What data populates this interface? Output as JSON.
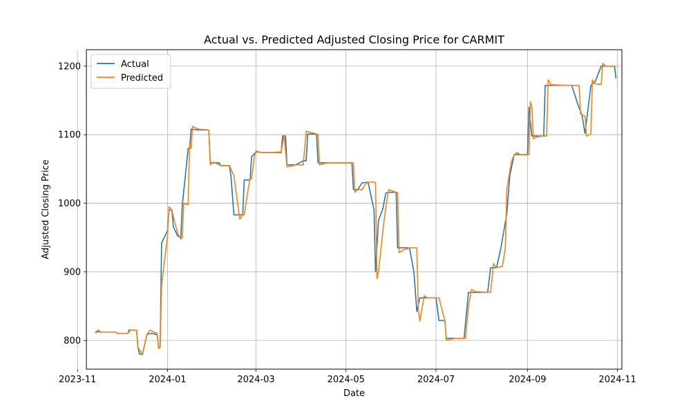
{
  "chart_data": {
    "type": "line",
    "title": "Actual vs. Predicted Adjusted Closing Price for CARMIT",
    "xlabel": "Date",
    "ylabel": "Adjusted Closing Price",
    "x_ticks": [
      "2023-11",
      "2024-01",
      "2024-03",
      "2024-05",
      "2024-07",
      "2024-09",
      "2024-11"
    ],
    "y_ticks": [
      800,
      900,
      1000,
      1100,
      1200
    ],
    "xlim": [
      "2023-11-07",
      "2024-11-04"
    ],
    "ylim": [
      758,
      1224
    ],
    "grid": true,
    "legend_position": "top-left",
    "series": [
      {
        "name": "Actual",
        "color": "#1f77b4",
        "points": [
          [
            "2023-11-13",
            811
          ],
          [
            "2023-11-15",
            813
          ],
          [
            "2023-11-17",
            812
          ],
          [
            "2023-11-20",
            812
          ],
          [
            "2023-11-27",
            812
          ],
          [
            "2023-11-28",
            810
          ],
          [
            "2023-12-05",
            810
          ],
          [
            "2023-12-06",
            815
          ],
          [
            "2023-12-08",
            815
          ],
          [
            "2023-12-11",
            815
          ],
          [
            "2023-12-12",
            790
          ],
          [
            "2023-12-13",
            780
          ],
          [
            "2023-12-14",
            780
          ],
          [
            "2023-12-15",
            780
          ],
          [
            "2023-12-18",
            808
          ],
          [
            "2023-12-20",
            810
          ],
          [
            "2023-12-22",
            810
          ],
          [
            "2023-12-25",
            808
          ],
          [
            "2023-12-26",
            790
          ],
          [
            "2023-12-27",
            790
          ],
          [
            "2023-12-28",
            942
          ],
          [
            "2024-01-01",
            960
          ],
          [
            "2024-01-02",
            990
          ],
          [
            "2024-01-04",
            990
          ],
          [
            "2024-01-05",
            965
          ],
          [
            "2024-01-08",
            952
          ],
          [
            "2024-01-10",
            950
          ],
          [
            "2024-01-11",
            997
          ],
          [
            "2024-01-15",
            1080
          ],
          [
            "2024-01-16",
            1080
          ],
          [
            "2024-01-17",
            1108
          ],
          [
            "2024-01-22",
            1107
          ],
          [
            "2024-01-29",
            1107
          ],
          [
            "2024-01-30",
            1059
          ],
          [
            "2024-02-05",
            1059
          ],
          [
            "2024-02-06",
            1055
          ],
          [
            "2024-02-12",
            1055
          ],
          [
            "2024-02-13",
            1040
          ],
          [
            "2024-02-15",
            983
          ],
          [
            "2024-02-19",
            983
          ],
          [
            "2024-02-21",
            983
          ],
          [
            "2024-02-22",
            1034
          ],
          [
            "2024-02-26",
            1034
          ],
          [
            "2024-02-27",
            1068
          ],
          [
            "2024-03-01",
            1075
          ],
          [
            "2024-03-05",
            1074
          ],
          [
            "2024-03-12",
            1074
          ],
          [
            "2024-03-18",
            1074
          ],
          [
            "2024-03-19",
            1098
          ],
          [
            "2024-03-21",
            1098
          ],
          [
            "2024-03-22",
            1056
          ],
          [
            "2024-03-28",
            1056
          ],
          [
            "2024-04-02",
            1062
          ],
          [
            "2024-04-04",
            1062
          ],
          [
            "2024-04-05",
            1101
          ],
          [
            "2024-04-11",
            1101
          ],
          [
            "2024-04-12",
            1059
          ],
          [
            "2024-04-18",
            1059
          ],
          [
            "2024-04-25",
            1059
          ],
          [
            "2024-05-05",
            1059
          ],
          [
            "2024-05-06",
            1020
          ],
          [
            "2024-05-09",
            1020
          ],
          [
            "2024-05-12",
            1030
          ],
          [
            "2024-05-16",
            1030
          ],
          [
            "2024-05-20",
            990
          ],
          [
            "2024-05-21",
            900
          ],
          [
            "2024-05-23",
            975
          ],
          [
            "2024-05-26",
            992
          ],
          [
            "2024-05-28",
            1015
          ],
          [
            "2024-05-30",
            1016
          ],
          [
            "2024-06-04",
            1016
          ],
          [
            "2024-06-05",
            935
          ],
          [
            "2024-06-09",
            935
          ],
          [
            "2024-06-13",
            935
          ],
          [
            "2024-06-16",
            900
          ],
          [
            "2024-06-18",
            842
          ],
          [
            "2024-06-20",
            862
          ],
          [
            "2024-06-25",
            862
          ],
          [
            "2024-07-01",
            862
          ],
          [
            "2024-07-03",
            829
          ],
          [
            "2024-07-07",
            829
          ],
          [
            "2024-07-08",
            803
          ],
          [
            "2024-07-14",
            803
          ],
          [
            "2024-07-18",
            803
          ],
          [
            "2024-07-20",
            803
          ],
          [
            "2024-07-23",
            870
          ],
          [
            "2024-07-28",
            870
          ],
          [
            "2024-08-05",
            870
          ],
          [
            "2024-08-07",
            906
          ],
          [
            "2024-08-11",
            906
          ],
          [
            "2024-08-14",
            935
          ],
          [
            "2024-08-18",
            985
          ],
          [
            "2024-08-20",
            1040
          ],
          [
            "2024-08-23",
            1071
          ],
          [
            "2024-08-27",
            1071
          ],
          [
            "2024-09-01",
            1071
          ],
          [
            "2024-09-02",
            1140
          ],
          [
            "2024-09-04",
            1098
          ],
          [
            "2024-09-08",
            1098
          ],
          [
            "2024-09-12",
            1098
          ],
          [
            "2024-09-13",
            1172
          ],
          [
            "2024-09-18",
            1172
          ],
          [
            "2024-09-26",
            1172
          ],
          [
            "2024-10-01",
            1172
          ],
          [
            "2024-10-05",
            1145
          ],
          [
            "2024-10-08",
            1128
          ],
          [
            "2024-10-10",
            1102
          ],
          [
            "2024-10-14",
            1172
          ],
          [
            "2024-10-17",
            1178
          ],
          [
            "2024-10-21",
            1200
          ],
          [
            "2024-10-27",
            1200
          ],
          [
            "2024-10-30",
            1200
          ],
          [
            "2024-10-31",
            1182
          ]
        ]
      },
      {
        "name": "Predicted",
        "color": "#ff7f0e",
        "points": [
          [
            "2023-11-13",
            811
          ],
          [
            "2023-11-15",
            815
          ],
          [
            "2023-11-17",
            812
          ],
          [
            "2023-11-20",
            812
          ],
          [
            "2023-11-27",
            812
          ],
          [
            "2023-11-28",
            810
          ],
          [
            "2023-12-05",
            810
          ],
          [
            "2023-12-07",
            815
          ],
          [
            "2023-12-11",
            815
          ],
          [
            "2023-12-12",
            788
          ],
          [
            "2023-12-13",
            787
          ],
          [
            "2023-12-15",
            779
          ],
          [
            "2023-12-18",
            808
          ],
          [
            "2023-12-20",
            815
          ],
          [
            "2023-12-22",
            813
          ],
          [
            "2023-12-25",
            810
          ],
          [
            "2023-12-26",
            788
          ],
          [
            "2023-12-27",
            790
          ],
          [
            "2023-12-28",
            880
          ],
          [
            "2024-01-01",
            952
          ],
          [
            "2024-01-02",
            995
          ],
          [
            "2024-01-04",
            990
          ],
          [
            "2024-01-05",
            980
          ],
          [
            "2024-01-08",
            955
          ],
          [
            "2024-01-10",
            948
          ],
          [
            "2024-01-11",
            950
          ],
          [
            "2024-01-12",
            1000
          ],
          [
            "2024-01-15",
            998
          ],
          [
            "2024-01-16",
            1090
          ],
          [
            "2024-01-17",
            1080
          ],
          [
            "2024-01-18",
            1112
          ],
          [
            "2024-01-22",
            1108
          ],
          [
            "2024-01-29",
            1107
          ],
          [
            "2024-01-30",
            1056
          ],
          [
            "2024-02-01",
            1060
          ],
          [
            "2024-02-06",
            1055
          ],
          [
            "2024-02-12",
            1055
          ],
          [
            "2024-02-15",
            1040
          ],
          [
            "2024-02-19",
            977
          ],
          [
            "2024-02-21",
            983
          ],
          [
            "2024-02-22",
            983
          ],
          [
            "2024-02-26",
            1038
          ],
          [
            "2024-02-27",
            1036
          ],
          [
            "2024-02-29",
            1070
          ],
          [
            "2024-03-01",
            1076
          ],
          [
            "2024-03-05",
            1074
          ],
          [
            "2024-03-12",
            1074
          ],
          [
            "2024-03-18",
            1075
          ],
          [
            "2024-03-20",
            1099
          ],
          [
            "2024-03-22",
            1053
          ],
          [
            "2024-03-28",
            1056
          ],
          [
            "2024-04-02",
            1056
          ],
          [
            "2024-04-04",
            1105
          ],
          [
            "2024-04-11",
            1101
          ],
          [
            "2024-04-12",
            1100
          ],
          [
            "2024-04-13",
            1056
          ],
          [
            "2024-04-18",
            1059
          ],
          [
            "2024-04-25",
            1059
          ],
          [
            "2024-05-05",
            1059
          ],
          [
            "2024-05-06",
            1059
          ],
          [
            "2024-05-07",
            1016
          ],
          [
            "2024-05-09",
            1020
          ],
          [
            "2024-05-12",
            1020
          ],
          [
            "2024-05-15",
            1031
          ],
          [
            "2024-05-20",
            1031
          ],
          [
            "2024-05-21",
            1030
          ],
          [
            "2024-05-22",
            890
          ],
          [
            "2024-05-23",
            900
          ],
          [
            "2024-05-26",
            960
          ],
          [
            "2024-05-28",
            995
          ],
          [
            "2024-05-30",
            1020
          ],
          [
            "2024-06-04",
            1016
          ],
          [
            "2024-06-05",
            1016
          ],
          [
            "2024-06-06",
            928
          ],
          [
            "2024-06-09",
            932
          ],
          [
            "2024-06-13",
            935
          ],
          [
            "2024-06-18",
            935
          ],
          [
            "2024-06-19",
            845
          ],
          [
            "2024-06-20",
            828
          ],
          [
            "2024-06-23",
            865
          ],
          [
            "2024-06-25",
            862
          ],
          [
            "2024-07-01",
            862
          ],
          [
            "2024-07-03",
            862
          ],
          [
            "2024-07-07",
            829
          ],
          [
            "2024-07-08",
            800
          ],
          [
            "2024-07-14",
            803
          ],
          [
            "2024-07-18",
            803
          ],
          [
            "2024-07-21",
            803
          ],
          [
            "2024-07-23",
            850
          ],
          [
            "2024-07-25",
            874
          ],
          [
            "2024-07-28",
            871
          ],
          [
            "2024-08-05",
            870
          ],
          [
            "2024-08-07",
            870
          ],
          [
            "2024-08-09",
            912
          ],
          [
            "2024-08-11",
            906
          ],
          [
            "2024-08-15",
            908
          ],
          [
            "2024-08-17",
            935
          ],
          [
            "2024-08-18",
            1020
          ],
          [
            "2024-08-21",
            1060
          ],
          [
            "2024-08-23",
            1071
          ],
          [
            "2024-08-25",
            1074
          ],
          [
            "2024-08-27",
            1071
          ],
          [
            "2024-09-01",
            1071
          ],
          [
            "2024-09-02",
            1071
          ],
          [
            "2024-09-03",
            1148
          ],
          [
            "2024-09-04",
            1140
          ],
          [
            "2024-09-05",
            1094
          ],
          [
            "2024-09-08",
            1097
          ],
          [
            "2024-09-12",
            1098
          ],
          [
            "2024-09-14",
            1098
          ],
          [
            "2024-09-15",
            1180
          ],
          [
            "2024-09-17",
            1173
          ],
          [
            "2024-09-26",
            1172
          ],
          [
            "2024-10-01",
            1172
          ],
          [
            "2024-10-06",
            1172
          ],
          [
            "2024-10-07",
            1130
          ],
          [
            "2024-10-10",
            1127
          ],
          [
            "2024-10-11",
            1098
          ],
          [
            "2024-10-14",
            1101
          ],
          [
            "2024-10-15",
            1180
          ],
          [
            "2024-10-16",
            1175
          ],
          [
            "2024-10-21",
            1173
          ],
          [
            "2024-10-22",
            1204
          ],
          [
            "2024-10-24",
            1200
          ],
          [
            "2024-10-31",
            1200
          ]
        ]
      }
    ]
  }
}
